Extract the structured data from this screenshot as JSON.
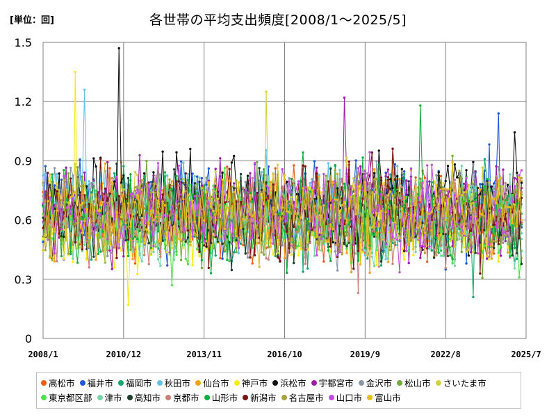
{
  "unit_label": "[単位：回]",
  "title": "各世帯の平均支出頻度[2008/1～2025/5]",
  "chart_data": {
    "type": "line",
    "title": "各世帯の平均支出頻度[2008/1～2025/5]",
    "unit": "[単位：回]",
    "xlabel": "",
    "ylabel": "",
    "x_start": "2008/1",
    "x_end": "2025/5",
    "x_ticks": [
      "2008/1",
      "2010/12",
      "2013/11",
      "2016/10",
      "2019/9",
      "2022/8",
      "2025/7"
    ],
    "y_ticks": [
      "0",
      "0.3",
      "0.6",
      "0.9",
      "1.2",
      "1.5"
    ],
    "ylim": [
      0,
      1.5
    ],
    "grid": true,
    "legend_position": "bottom",
    "series": [
      {
        "name": "高松市",
        "color": "#f05a14",
        "mean": 0.63
      },
      {
        "name": "福井市",
        "color": "#1f55d8",
        "mean": 0.66
      },
      {
        "name": "福岡市",
        "color": "#12a86b",
        "mean": 0.6
      },
      {
        "name": "秋田市",
        "color": "#62c3e8",
        "mean": 0.65
      },
      {
        "name": "仙台市",
        "color": "#f2a11a",
        "mean": 0.63
      },
      {
        "name": "神戸市",
        "color": "#f8ea18",
        "mean": 0.57
      },
      {
        "name": "浜松市",
        "color": "#111111",
        "mean": 0.7
      },
      {
        "name": "宇都宮市",
        "color": "#9c1fa8",
        "mean": 0.66
      },
      {
        "name": "金沢市",
        "color": "#8a97a6",
        "mean": 0.65
      },
      {
        "name": "松山市",
        "color": "#74a93c",
        "mean": 0.62
      },
      {
        "name": "さいたま市",
        "color": "#d2d23e",
        "mean": 0.64
      },
      {
        "name": "東京都区部",
        "color": "#4fe04f",
        "mean": 0.58
      },
      {
        "name": "津市",
        "color": "#76d6a8",
        "mean": 0.6
      },
      {
        "name": "高知市",
        "color": "#1d3d2d",
        "mean": 0.62
      },
      {
        "name": "京都市",
        "color": "#c98078",
        "mean": 0.6
      },
      {
        "name": "山形市",
        "color": "#0fb040",
        "mean": 0.62
      },
      {
        "name": "新潟市",
        "color": "#7b1414",
        "mean": 0.64
      },
      {
        "name": "名古屋市",
        "color": "#a8a33c",
        "mean": 0.63
      },
      {
        "name": "山口市",
        "color": "#c44ae0",
        "mean": 0.65
      },
      {
        "name": "富山市",
        "color": "#e3c01d",
        "mean": 0.64
      }
    ],
    "notable_values": [
      {
        "series": "浜松市",
        "x": "2010/10",
        "y": 1.47
      },
      {
        "series": "秋田市",
        "x": "2009/7",
        "y": 1.26
      },
      {
        "series": "神戸市",
        "x": "2009/3",
        "y": 1.35
      },
      {
        "series": "さいたま市",
        "x": "2016/2",
        "y": 1.25
      },
      {
        "series": "宇都宮市",
        "x": "2018/12",
        "y": 1.22
      },
      {
        "series": "山形市",
        "x": "2021/9",
        "y": 1.18
      },
      {
        "series": "福井市",
        "x": "2024/7",
        "y": 1.14
      },
      {
        "series": "神戸市",
        "x": "2011/2",
        "y": 0.17
      },
      {
        "series": "福岡市",
        "x": "2023/8",
        "y": 0.21
      }
    ]
  }
}
